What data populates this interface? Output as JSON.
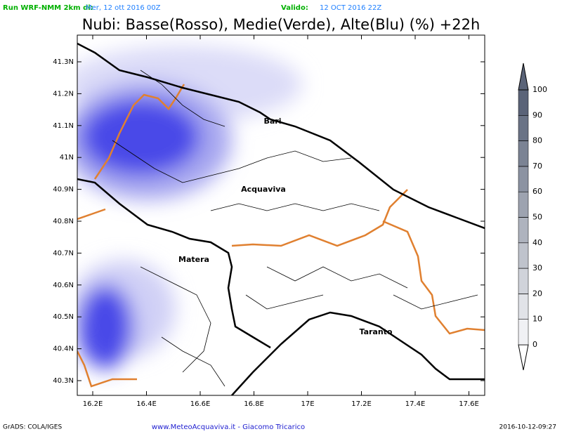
{
  "header": {
    "run_label": "Run WRF-NMM 2km di:",
    "run_date": "Mer, 12 ott 2016 00Z",
    "valid_label": "Valido:",
    "valid_date": "12 OCT 2016 22Z",
    "title": "Nubi: Basse(Rosso), Medie(Verde), Alte(Blu) (%) +22h"
  },
  "map": {
    "x_ticks": [
      {
        "value": 16.2,
        "label": "16.2E"
      },
      {
        "value": 16.4,
        "label": "16.4E"
      },
      {
        "value": 16.6,
        "label": "16.6E"
      },
      {
        "value": 16.8,
        "label": "16.8E"
      },
      {
        "value": 17,
        "label": "17E"
      },
      {
        "value": 17.2,
        "label": "17.2E"
      },
      {
        "value": 17.4,
        "label": "17.4E"
      },
      {
        "value": 17.6,
        "label": "17.6E"
      }
    ],
    "y_ticks": [
      {
        "value": 40.3,
        "label": "40.3N"
      },
      {
        "value": 40.4,
        "label": "40.4N"
      },
      {
        "value": 40.5,
        "label": "40.5N"
      },
      {
        "value": 40.6,
        "label": "40.6N"
      },
      {
        "value": 40.7,
        "label": "40.7N"
      },
      {
        "value": 40.8,
        "label": "40.8N"
      },
      {
        "value": 40.9,
        "label": "40.9N"
      },
      {
        "value": 41,
        "label": "41N"
      },
      {
        "value": 41.1,
        "label": "41.1N"
      },
      {
        "value": 41.2,
        "label": "41.2N"
      },
      {
        "value": 41.3,
        "label": "41.3N"
      }
    ],
    "cities": [
      "Bari",
      "Acquaviva",
      "Matera",
      "Taranto"
    ]
  },
  "colorbar": {
    "ticks": [
      0,
      10,
      20,
      30,
      40,
      50,
      60,
      70,
      80,
      90,
      100
    ]
  },
  "footer": {
    "left": "GrADS: COLA/IGES",
    "center": "www.MeteoAcquaviva.it - Giacomo Tricarico",
    "right": "2016-10-12-09:27"
  }
}
